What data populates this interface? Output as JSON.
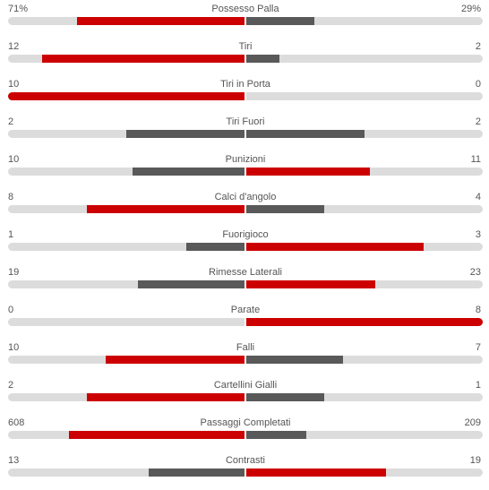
{
  "colors": {
    "leader": "#cc0000",
    "trailer": "#595959",
    "track": "#dcdcdc",
    "text": "#555555"
  },
  "stats": [
    {
      "label": "Possesso Palla",
      "home": "71%",
      "away": "29%",
      "home_fill": 0.71,
      "away_fill": 0.29
    },
    {
      "label": "Tiri",
      "home": "12",
      "away": "2",
      "home_fill": 0.857,
      "away_fill": 0.143
    },
    {
      "label": "Tiri in Porta",
      "home": "10",
      "away": "0",
      "home_fill": 1.0,
      "away_fill": 0.0
    },
    {
      "label": "Tiri Fuori",
      "home": "2",
      "away": "2",
      "home_fill": 0.5,
      "away_fill": 0.5
    },
    {
      "label": "Punizioni",
      "home": "10",
      "away": "11",
      "home_fill": 0.476,
      "away_fill": 0.524
    },
    {
      "label": "Calci d'angolo",
      "home": "8",
      "away": "4",
      "home_fill": 0.667,
      "away_fill": 0.333
    },
    {
      "label": "Fuorigioco",
      "home": "1",
      "away": "3",
      "home_fill": 0.25,
      "away_fill": 0.75
    },
    {
      "label": "Rimesse Laterali",
      "home": "19",
      "away": "23",
      "home_fill": 0.452,
      "away_fill": 0.548
    },
    {
      "label": "Parate",
      "home": "0",
      "away": "8",
      "home_fill": 0.0,
      "away_fill": 1.0
    },
    {
      "label": "Falli",
      "home": "10",
      "away": "7",
      "home_fill": 0.588,
      "away_fill": 0.412
    },
    {
      "label": "Cartellini Gialli",
      "home": "2",
      "away": "1",
      "home_fill": 0.667,
      "away_fill": 0.333
    },
    {
      "label": "Passaggi Completati",
      "home": "608",
      "away": "209",
      "home_fill": 0.744,
      "away_fill": 0.256
    },
    {
      "label": "Contrasti",
      "home": "13",
      "away": "19",
      "home_fill": 0.406,
      "away_fill": 0.594
    }
  ]
}
